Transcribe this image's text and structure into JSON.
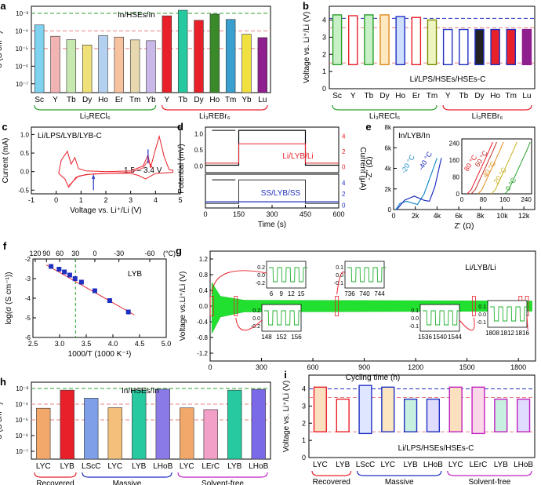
{
  "colors": {
    "green": "#2ca02c",
    "red": "#e8202a",
    "blue": "#1f2fbf",
    "olive": "#7a8c00",
    "tb": "#26c9a0",
    "ho": "#3a8a2a",
    "tm": "#3aa0d0",
    "lu": "#8f1f8f",
    "orange": "#e08a20"
  },
  "panels": [
    {
      "id": "a",
      "label": "a",
      "ylabel": "σ (S cm⁻¹)",
      "annotation": "In/HSEs/In",
      "ytick_labels": [
        "10⁻⁷",
        "10⁻⁶",
        "10⁻⁵",
        "10⁻⁴",
        "10⁻³"
      ],
      "groups": [
        "Li₃RECl₆",
        "Li₃REBr₆"
      ],
      "chart_data": {
        "type": "bar",
        "categories": [
          "Sc",
          "Y",
          "Tb",
          "Dy",
          "Ho",
          "Er",
          "Tm",
          "Yb",
          "Y",
          "Tb",
          "Dy",
          "Ho",
          "Tm",
          "Yb",
          "Lu"
        ],
        "values": [
          0.00022,
          5e-05,
          3.2e-05,
          1.6e-05,
          5.5e-05,
          4.5e-05,
          3.1e-05,
          2.8e-05,
          0.00072,
          0.0015,
          0.0004,
          0.0009,
          0.00045,
          6.5e-05,
          4.2e-05
        ],
        "ylim_log10": [
          -7.5,
          -2.6
        ],
        "ref_lines": [
          0.001,
          0.0001,
          1e-05
        ]
      }
    },
    {
      "id": "b",
      "label": "b",
      "ylabel": "Voltage vs. Li⁺/Li (V)",
      "annotation": "Li/LPS/HSEs/HSEs-C",
      "ytick_labels": [
        "0",
        "1",
        "2",
        "3",
        "4"
      ],
      "groups": [
        "Li₃RECl₆",
        "Li₃REBr₆"
      ],
      "chart_data": {
        "type": "bar",
        "categories": [
          "Sc",
          "Y",
          "Tb",
          "Dy",
          "Ho",
          "Er",
          "Tm",
          "Y",
          "Tb",
          "Dy",
          "Ho",
          "Tm",
          "Lu"
        ],
        "low": [
          1.4,
          1.4,
          1.4,
          1.4,
          1.4,
          1.4,
          1.4,
          1.4,
          1.4,
          1.4,
          1.4,
          1.4,
          1.4
        ],
        "high": [
          4.3,
          4.25,
          4.3,
          4.3,
          4.2,
          4.15,
          4.0,
          3.45,
          3.45,
          3.45,
          3.45,
          3.45,
          3.45
        ],
        "ylim": [
          0,
          4.8
        ],
        "ref_lines": [
          4.1,
          3.55,
          1.5
        ]
      }
    },
    {
      "id": "c",
      "label": "c",
      "title": "Li/LPS/LYB/LYB-C",
      "annotation": "1.5 – 3.4 V",
      "xlabel": "Voltage vs. Li⁺/Li (V)",
      "ylabel": "Current (mA)",
      "xtick_labels": [
        "-1",
        "0",
        "1",
        "2",
        "3",
        "4",
        "5"
      ],
      "ytick_labels": [
        "-0.5",
        "0.0",
        "0.5",
        "1.0"
      ],
      "chart_data": {
        "type": "line",
        "xlim": [
          -1,
          5
        ],
        "ylim": [
          -0.6,
          1.2
        ]
      }
    },
    {
      "id": "d",
      "label": "d",
      "xlabel": "Time (s)",
      "ylabel": "Potential (mV)",
      "ylabel_right": "Current (μA)",
      "legend_top": "Li/LYB/Li",
      "legend_bottom": "SS/LYB/SS",
      "xtick_labels": [
        "0",
        "150",
        "300",
        "450",
        "600"
      ],
      "ytick_labels_top": [
        "0.0",
        "0.5",
        "1.0"
      ],
      "ytick_labels_right_top": [
        "0",
        "2",
        "4"
      ],
      "ytick_labels_bottom": [
        "0",
        "2",
        "4"
      ],
      "chart_data": {
        "type": "line",
        "xlim": [
          0,
          600
        ],
        "step_on": 150,
        "step_off": 450
      }
    },
    {
      "id": "e",
      "label": "e",
      "title": "In/LYB/In",
      "xlabel": "Z' (Ω)",
      "ylabel": "-Z'' (Ω)",
      "xtick_labels": [
        "0",
        "2k",
        "4k",
        "6k",
        "8k",
        "10k",
        "12k"
      ],
      "ytick_labels": [
        "0",
        "2k",
        "4k",
        "6k",
        "8k"
      ],
      "inset_xtick_labels": [
        "0",
        "80",
        "160",
        "240"
      ],
      "inset_ytick_labels": [
        "0",
        "80",
        "160",
        "240"
      ],
      "main_temps": [
        "-20 °C",
        "-40 °C"
      ],
      "inset_temps": [
        "80 °C",
        "60 °C",
        "40 °C",
        "20 °C",
        "0 °C"
      ],
      "chart_data": {
        "type": "line",
        "xlim": [
          0,
          13000
        ],
        "ylim": [
          0,
          8000
        ]
      }
    },
    {
      "id": "f",
      "label": "f",
      "title": "LYB",
      "xlabel": "1000/T (1000 K⁻¹)",
      "ylabel": "log(σ (S cm⁻¹))",
      "top_axis_unit": "(°C)",
      "top_tick_labels": [
        "120",
        "90",
        "60",
        "30",
        "0",
        "-30",
        "-60"
      ],
      "xtick_labels": [
        "2.5",
        "3.0",
        "3.5",
        "4.0",
        "4.5",
        "5.0"
      ],
      "ytick_labels": [
        "-2",
        "-3",
        "-4",
        "-5",
        "-6"
      ],
      "chart_data": {
        "type": "scatter",
        "x": [
          2.84,
          2.99,
          3.09,
          3.19,
          3.29,
          3.41,
          3.66,
          3.94,
          4.29
        ],
        "y": [
          -2.38,
          -2.52,
          -2.66,
          -2.82,
          -3.0,
          -3.18,
          -3.62,
          -4.12,
          -4.7
        ],
        "xlim": [
          2.5,
          5.0
        ],
        "ylim": [
          -6,
          -2
        ]
      }
    },
    {
      "id": "g",
      "label": "g",
      "title": "Li/LYB/Li",
      "xlabel": "Cycling time (h)",
      "ylabel": "Voltage vs.Li⁺/Li (V)",
      "xtick_labels": [
        "0",
        "300",
        "600",
        "900",
        "1200",
        "1500",
        "1800"
      ],
      "ytick_labels": [
        "-1.2",
        "-0.8",
        "-0.4",
        "0.0",
        "0.4",
        "0.8",
        "1.2"
      ],
      "insets": [
        {
          "ticks": [
            "6",
            "9",
            "12",
            "15"
          ],
          "yticks": [
            "0.2",
            "0.0",
            "-0.2"
          ]
        },
        {
          "ticks": [
            "736",
            "740",
            "744"
          ],
          "yticks": [
            "0.1",
            "0.0",
            "-0.1"
          ]
        },
        {
          "ticks": [
            "148",
            "152",
            "156"
          ],
          "yticks": [
            "0.2",
            "0.0",
            "-0.2"
          ]
        },
        {
          "ticks": [
            "1536",
            "1540",
            "1544"
          ],
          "yticks": [
            "0.1",
            "0.0",
            "-0.1"
          ]
        },
        {
          "ticks": [
            "1808",
            "1812",
            "1816"
          ],
          "yticks": [
            "0.1",
            "0.0",
            "-0.1"
          ]
        }
      ],
      "chart_data": {
        "type": "line",
        "xlim": [
          0,
          1900
        ],
        "ylim": [
          -1.4,
          1.4
        ]
      }
    },
    {
      "id": "h",
      "label": "h",
      "ylabel": "σ (S cm⁻¹)",
      "annotation": "In/HSEs/In",
      "ytick_labels": [
        "10⁻⁷",
        "10⁻⁶",
        "10⁻⁵",
        "10⁻⁴",
        "10⁻³"
      ],
      "groups": [
        "Recovered",
        "Massive",
        "Solvent-free"
      ],
      "chart_data": {
        "type": "bar",
        "categories": [
          "LYC",
          "LYB",
          "LScC",
          "LYC",
          "LYB",
          "LHoB",
          "LYC",
          "LErC",
          "LYB",
          "LHoB"
        ],
        "values": [
          5.5e-05,
          0.00078,
          0.00024,
          6e-05,
          0.0008,
          0.0009,
          5.8e-05,
          4.5e-05,
          0.00078,
          0.00088
        ],
        "ylim_log10": [
          -7.5,
          -2.6
        ],
        "ref_lines": [
          0.001,
          0.0001,
          1e-05
        ]
      }
    },
    {
      "id": "i",
      "label": "i",
      "ylabel": "Voltage vs. Li⁺/Li (V)",
      "annotation": "Li/LPS/HSEs/HSEs-C",
      "ytick_labels": [
        "0",
        "1",
        "2",
        "3",
        "4"
      ],
      "groups": [
        "Recovered",
        "Massive",
        "Solvent-free"
      ],
      "chart_data": {
        "type": "bar",
        "categories": [
          "LYC",
          "LYB",
          "LScC",
          "LYC",
          "LYB",
          "LHoB",
          "LYC",
          "LErC",
          "LYB",
          "LHoB"
        ],
        "low": [
          1.5,
          1.5,
          1.4,
          1.5,
          1.5,
          1.5,
          1.5,
          1.4,
          1.5,
          1.5
        ],
        "high": [
          4.1,
          3.4,
          4.2,
          4.1,
          3.4,
          3.4,
          4.1,
          4.1,
          3.4,
          3.4
        ],
        "ylim": [
          0,
          4.8
        ],
        "ref_lines": [
          4.0,
          3.5,
          1.5
        ]
      }
    }
  ]
}
